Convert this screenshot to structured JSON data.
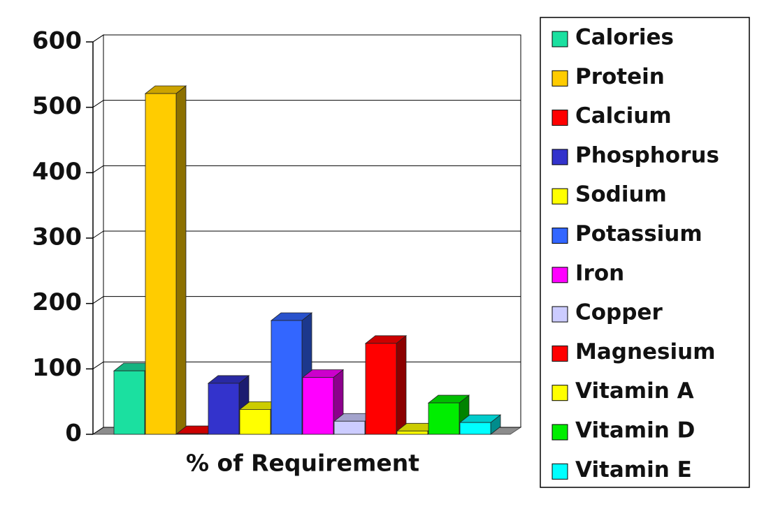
{
  "chart_data": {
    "type": "bar",
    "categories": [
      "% of Requirement"
    ],
    "series": [
      {
        "name": "Calories",
        "color": "#1be0a0",
        "values": [
          97
        ]
      },
      {
        "name": "Protein",
        "color": "#ffcc00",
        "values": [
          521
        ]
      },
      {
        "name": "Calcium",
        "color": "#ff0000",
        "values": [
          1
        ]
      },
      {
        "name": "Phosphorus",
        "color": "#3333cc",
        "values": [
          78
        ]
      },
      {
        "name": "Sodium",
        "color": "#ffff00",
        "values": [
          38
        ]
      },
      {
        "name": "Potassium",
        "color": "#3366ff",
        "values": [
          174
        ]
      },
      {
        "name": "Iron",
        "color": "#ff00ff",
        "values": [
          87
        ]
      },
      {
        "name": "Copper",
        "color": "#ccccff",
        "values": [
          20
        ]
      },
      {
        "name": "Magnesium",
        "color": "#ff0000",
        "values": [
          139
        ]
      },
      {
        "name": "Vitamin A",
        "color": "#ffff00",
        "values": [
          5
        ]
      },
      {
        "name": "Vitamin D",
        "color": "#00ee00",
        "values": [
          48
        ]
      },
      {
        "name": "Vitamin E",
        "color": "#00ffff",
        "values": [
          18
        ]
      }
    ],
    "ylim": [
      0,
      600
    ],
    "yticks": [
      0,
      100,
      200,
      300,
      400,
      500,
      600
    ],
    "grid": true,
    "legend": "right"
  }
}
